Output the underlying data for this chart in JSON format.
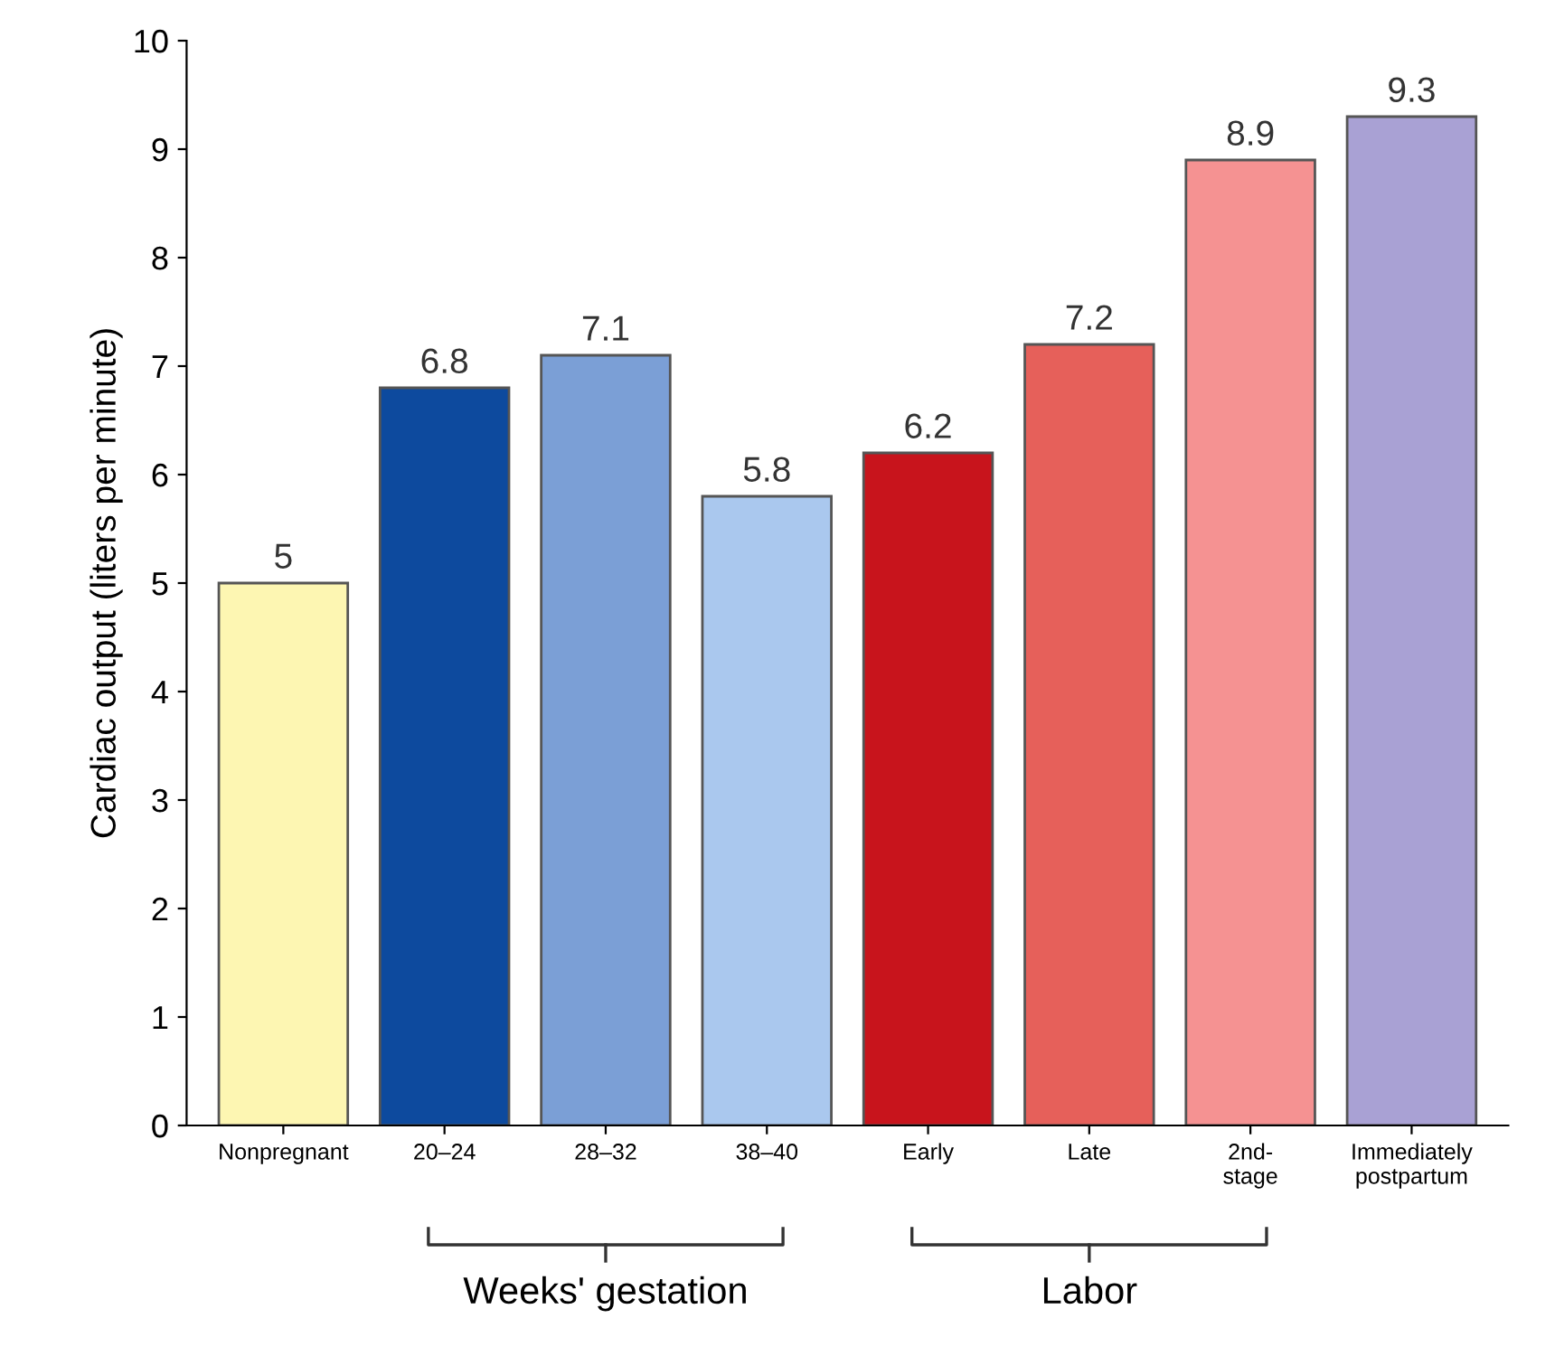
{
  "chart_data": {
    "type": "bar",
    "ylabel": "Cardiac output (liters per minute)",
    "categories": [
      "Nonpregnant",
      "20–24",
      "28–32",
      "38–40",
      "Early",
      "Late",
      "2nd-\nstage",
      "Immediately\npostpartum"
    ],
    "values": [
      5,
      6.8,
      7.1,
      5.8,
      6.2,
      7.2,
      8.9,
      9.3
    ],
    "colors": [
      "#fdf6b2",
      "#0d4a9e",
      "#7b9fd6",
      "#aac8ee",
      "#c8141c",
      "#e6605a",
      "#f59292",
      "#a9a1d4"
    ],
    "ylim": [
      0,
      10
    ],
    "yticks": [
      0,
      1,
      2,
      3,
      4,
      5,
      6,
      7,
      8,
      9,
      10
    ],
    "grid": false,
    "data_labels": true,
    "annotations": [
      "Weeks' gestation",
      "Labor"
    ]
  }
}
